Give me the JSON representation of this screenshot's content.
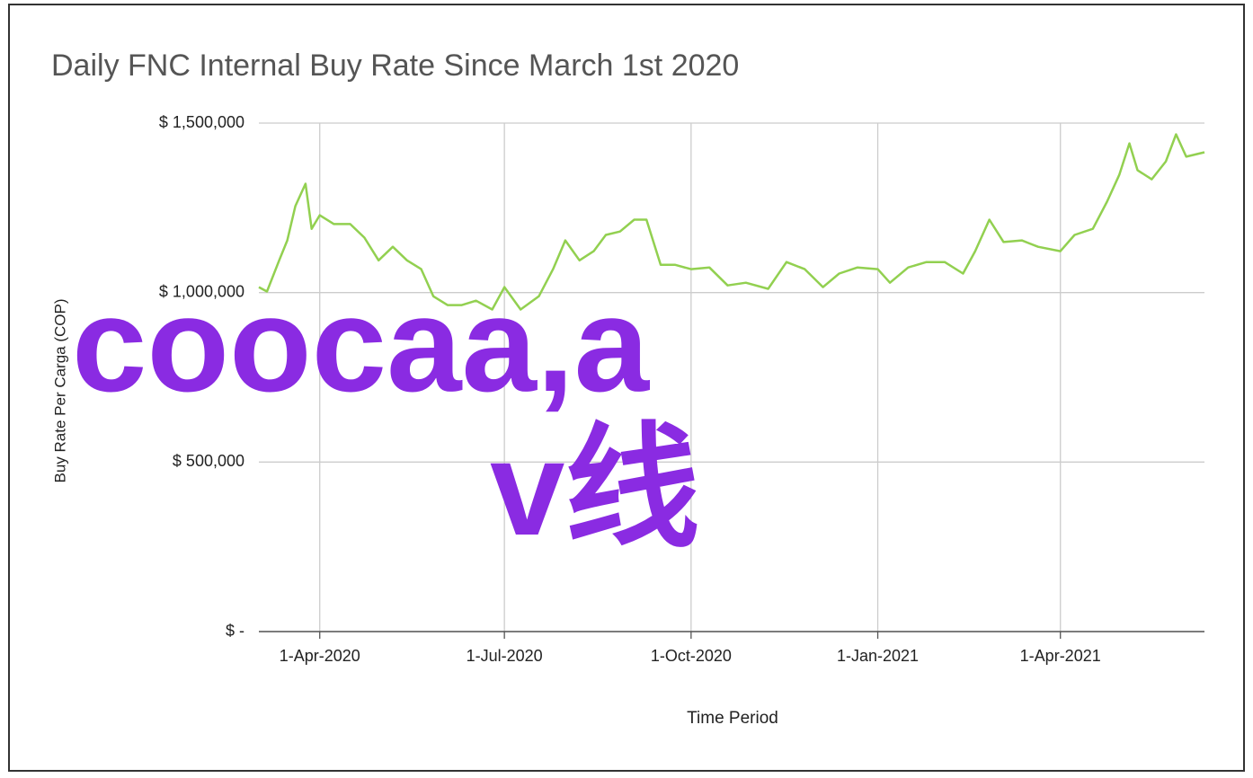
{
  "chart_data": {
    "type": "line",
    "title": "Daily FNC Internal Buy Rate Since March 1st 2020",
    "y_label": "Buy Rate Per Carga (COP)",
    "x_label": "Time Period",
    "annotations": [
      "coocaa,a",
      "v线"
    ],
    "x": [
      "2020-03-02",
      "2020-03-06",
      "2020-03-12",
      "2020-03-16",
      "2020-03-20",
      "2020-03-25",
      "2020-03-28",
      "2020-04-01",
      "2020-04-08",
      "2020-04-16",
      "2020-04-23",
      "2020-04-30",
      "2020-05-07",
      "2020-05-14",
      "2020-05-21",
      "2020-05-27",
      "2020-06-03",
      "2020-06-10",
      "2020-06-17",
      "2020-06-25",
      "2020-07-01",
      "2020-07-09",
      "2020-07-18",
      "2020-07-25",
      "2020-07-31",
      "2020-08-07",
      "2020-08-14",
      "2020-08-20",
      "2020-08-27",
      "2020-09-03",
      "2020-09-09",
      "2020-09-16",
      "2020-09-23",
      "2020-10-01",
      "2020-10-10",
      "2020-10-19",
      "2020-10-28",
      "2020-11-08",
      "2020-11-17",
      "2020-11-26",
      "2020-12-05",
      "2020-12-13",
      "2020-12-22",
      "2021-01-01",
      "2021-01-07",
      "2021-01-16",
      "2021-01-25",
      "2021-02-03",
      "2021-02-12",
      "2021-02-18",
      "2021-02-25",
      "2021-03-04",
      "2021-03-13",
      "2021-03-21",
      "2021-04-01",
      "2021-04-08",
      "2021-04-17",
      "2021-04-24",
      "2021-04-30",
      "2021-05-05",
      "2021-05-09",
      "2021-05-16",
      "2021-05-23",
      "2021-05-28",
      "2021-06-02",
      "2021-06-11"
    ],
    "series": [
      {
        "name": "Buy Rate",
        "color": "#92d050",
        "values": [
          1016000,
          1003000,
          1095000,
          1154000,
          1255000,
          1321000,
          1188000,
          1228000,
          1202000,
          1202000,
          1162000,
          1095000,
          1135000,
          1095000,
          1069000,
          989000,
          963000,
          963000,
          976000,
          950000,
          1016000,
          950000,
          989000,
          1069000,
          1154000,
          1095000,
          1122000,
          1170000,
          1180000,
          1215000,
          1215000,
          1082000,
          1082000,
          1069000,
          1074000,
          1021000,
          1029000,
          1011000,
          1090000,
          1069000,
          1016000,
          1056000,
          1074000,
          1069000,
          1029000,
          1074000,
          1090000,
          1090000,
          1056000,
          1122000,
          1215000,
          1149000,
          1154000,
          1135000,
          1122000,
          1170000,
          1188000,
          1268000,
          1347000,
          1440000,
          1361000,
          1334000,
          1387000,
          1467000,
          1401000,
          1414000
        ]
      }
    ],
    "xlim": [
      "2020-03-02",
      "2021-06-11"
    ],
    "xticks": [
      {
        "value": "2020-04-01",
        "label": "1-Apr-2020"
      },
      {
        "value": "2020-07-01",
        "label": "1-Jul-2020"
      },
      {
        "value": "2020-10-01",
        "label": "1-Oct-2020"
      },
      {
        "value": "2021-01-01",
        "label": "1-Jan-2021"
      },
      {
        "value": "2021-04-01",
        "label": "1-Apr-2021"
      }
    ],
    "ylim": [
      0,
      1500000
    ],
    "yticks": [
      {
        "value": 0,
        "label": "$ -"
      },
      {
        "value": 500000,
        "label": "$ 500,000"
      },
      {
        "value": 1000000,
        "label": "$ 1,000,000"
      },
      {
        "value": 1500000,
        "label": "$ 1,500,000"
      }
    ],
    "grid": true
  }
}
